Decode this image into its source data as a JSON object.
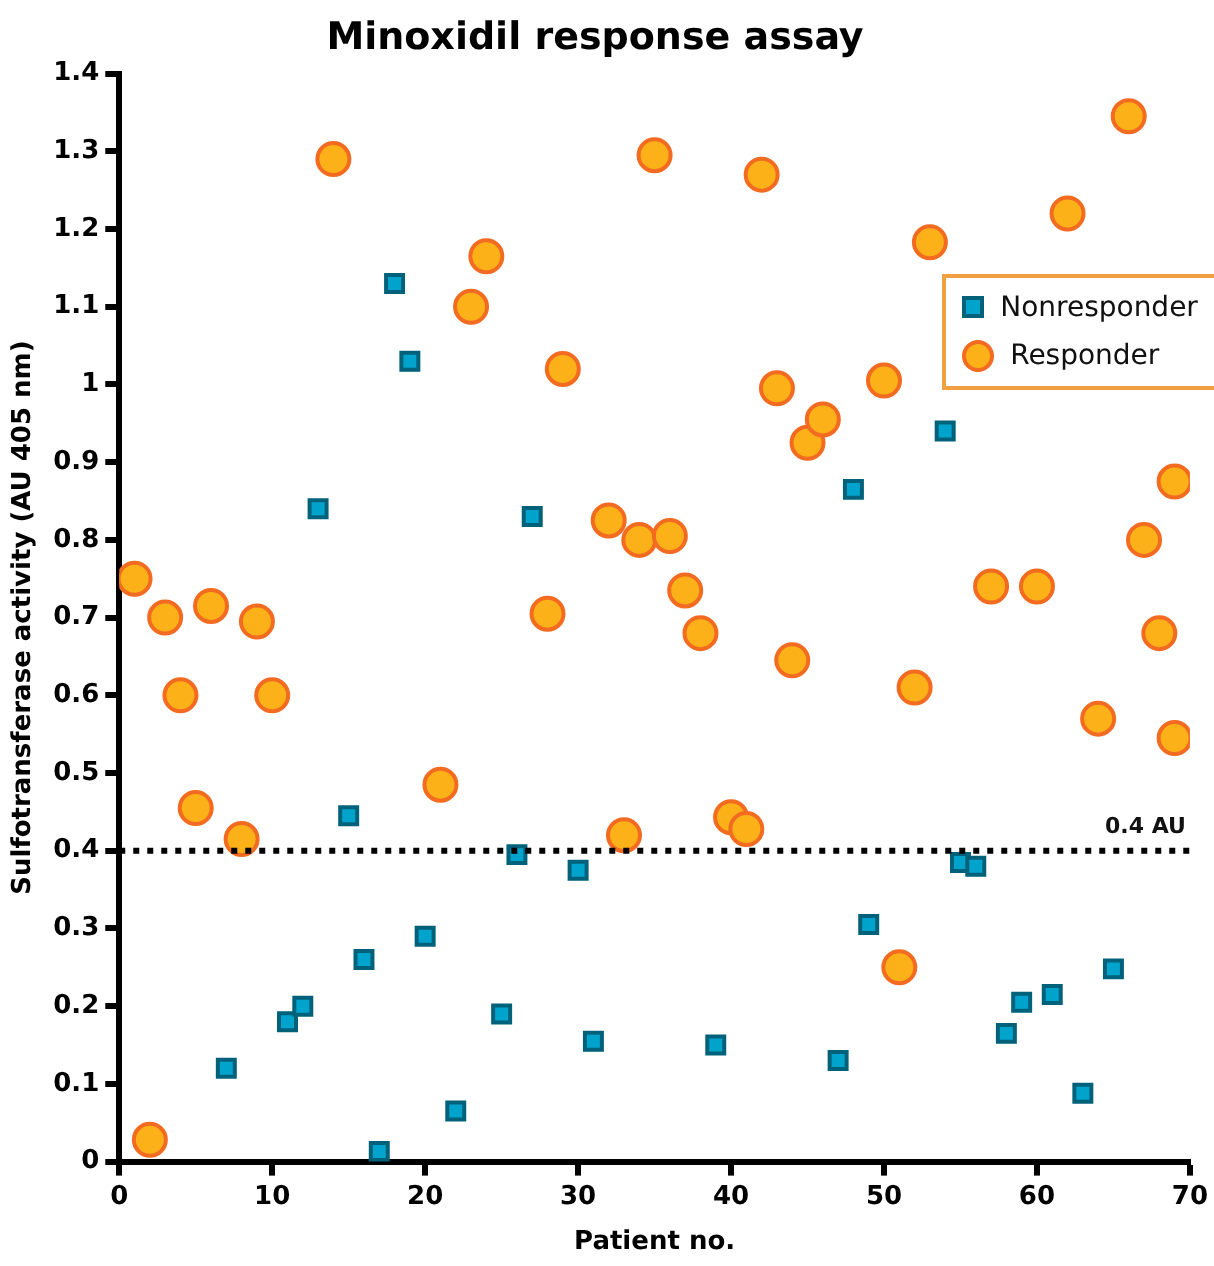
{
  "chart_data": {
    "type": "scatter",
    "title": "Minoxidil response assay",
    "xlabel": "Patient no.",
    "ylabel": "Sulfotransferase activity (AU 405 nm)",
    "xlim": [
      0,
      70
    ],
    "xticks": [
      0,
      10,
      20,
      30,
      40,
      50,
      60,
      70
    ],
    "ylim": [
      0,
      1.4
    ],
    "yticks": [
      0,
      0.1,
      0.2,
      0.3,
      0.4,
      0.5,
      0.6,
      0.7,
      0.8,
      0.9,
      1,
      1.1,
      1.2,
      1.3,
      1.4
    ],
    "grid": false,
    "legend": "top right",
    "ref_lines": [
      {
        "axis": "y",
        "value": 0.4,
        "label": "0.4 AU",
        "line_style": "dotted",
        "color": "#000000"
      }
    ],
    "series": [
      {
        "name": "Nonresponder",
        "color": "#00a3cc",
        "marker": "square",
        "x": [
          7,
          11,
          12,
          13,
          15,
          16,
          17,
          18,
          19,
          20,
          22,
          25,
          26,
          27,
          30,
          31,
          39,
          47,
          48,
          49,
          54,
          55,
          56,
          58,
          59,
          61,
          63,
          65
        ],
        "values": [
          0.12,
          0.18,
          0.2,
          0.84,
          0.445,
          0.26,
          0.013,
          1.13,
          1.03,
          0.29,
          0.065,
          0.19,
          0.395,
          0.83,
          0.375,
          0.155,
          0.15,
          0.13,
          0.865,
          0.305,
          0.94,
          0.385,
          0.38,
          0.165,
          0.205,
          0.215,
          0.088,
          0.248
        ]
      },
      {
        "name": "Responder",
        "color": "#fbb117",
        "marker": "circle",
        "x": [
          1,
          2,
          3,
          4,
          5,
          6,
          8,
          9,
          10,
          14,
          21,
          23,
          24,
          28,
          29,
          32,
          33,
          34,
          35,
          36,
          37,
          38,
          40,
          41,
          42,
          43,
          44,
          45,
          46,
          50,
          51,
          52,
          53,
          57,
          60,
          62,
          64,
          66,
          67,
          68,
          69,
          69
        ],
        "values": [
          0.75,
          0.028,
          0.7,
          0.6,
          0.455,
          0.715,
          0.415,
          0.695,
          0.6,
          1.29,
          0.485,
          1.1,
          1.165,
          0.705,
          1.02,
          0.825,
          0.42,
          0.8,
          1.295,
          0.805,
          0.735,
          0.68,
          0.443,
          0.428,
          1.27,
          0.995,
          0.645,
          0.925,
          0.955,
          1.005,
          0.25,
          0.61,
          1.183,
          0.74,
          0.74,
          1.22,
          0.57,
          1.345,
          0.8,
          0.68,
          0.875,
          0.545
        ]
      }
    ]
  }
}
